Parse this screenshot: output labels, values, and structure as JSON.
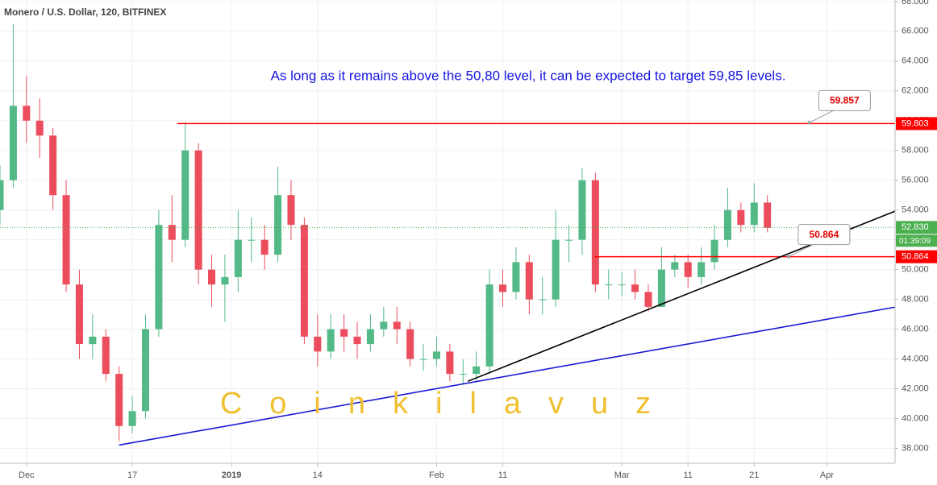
{
  "chart_data": {
    "type": "candlestick",
    "title": "Monero / U.S. Dollar, 120, BITFINEX",
    "annotation": "As long as it remains above the 50,80 level, it can be expected to target 59,85 levels.",
    "watermark": "Coinkilavuz",
    "x": [
      -4,
      -2,
      0,
      2,
      4,
      6,
      8,
      10,
      12,
      14,
      16,
      18,
      20,
      22,
      24,
      26,
      28,
      30,
      32,
      34,
      36,
      38,
      40,
      42,
      44,
      46,
      48,
      50,
      52,
      54,
      56,
      58,
      60,
      62,
      64,
      66,
      68,
      70,
      72,
      74,
      76,
      78,
      80,
      82,
      84,
      86,
      88,
      90,
      92,
      94,
      96,
      98,
      100,
      102,
      104,
      106,
      108,
      110,
      112
    ],
    "open": [
      54,
      56,
      61,
      60,
      59,
      55,
      49,
      45,
      45.5,
      43,
      39.5,
      40.5,
      46,
      53,
      52,
      58,
      50,
      49,
      49.5,
      52,
      52,
      51,
      55,
      53,
      45.5,
      44.5,
      46,
      45.5,
      45,
      46,
      46.5,
      46,
      44,
      44,
      44.5,
      43,
      43,
      43.5,
      49,
      48.5,
      50.5,
      48,
      48,
      52,
      52,
      56,
      49,
      49,
      49,
      48.5,
      47.5,
      50,
      50.5,
      49.5,
      50.5,
      52,
      54,
      53,
      54.5
    ],
    "high": [
      57,
      66.5,
      63,
      61.5,
      59.5,
      56,
      50,
      47,
      46,
      43.5,
      41.5,
      47,
      54,
      55,
      59.9,
      58.5,
      51,
      51,
      54,
      53.5,
      53,
      56.9,
      56,
      53.5,
      47,
      47,
      47,
      46.5,
      47,
      47.5,
      47.5,
      46.5,
      45,
      45.5,
      45,
      44,
      44.5,
      50,
      50,
      51.5,
      51,
      49.5,
      54,
      53,
      56.8,
      56.5,
      50,
      49.8,
      50,
      49,
      51.5,
      51,
      51,
      51.5,
      53,
      55.5,
      54.5,
      55.8,
      55
    ],
    "low": [
      53,
      55.5,
      58.5,
      57.5,
      54,
      48.5,
      44,
      44,
      42.5,
      38.5,
      39,
      40,
      45.5,
      50.5,
      51.5,
      49,
      47.5,
      46.5,
      48.5,
      50.5,
      50,
      50.5,
      52,
      45,
      43.5,
      44,
      44.5,
      44,
      44.5,
      45.5,
      45,
      43.5,
      43.2,
      43.5,
      42.5,
      42.3,
      42.5,
      43,
      47.5,
      48,
      47,
      47,
      47.5,
      50.5,
      51,
      48.5,
      48,
      48.2,
      48,
      47.2,
      47.5,
      49.5,
      48.8,
      49,
      50,
      51.5,
      52.5,
      52.5,
      52.5
    ],
    "close": [
      56,
      61,
      60,
      59,
      55,
      49,
      45,
      45.5,
      43,
      39.5,
      40.5,
      46,
      53,
      52,
      58,
      50,
      49,
      49.5,
      52,
      52,
      51,
      55,
      53,
      45.5,
      44.5,
      46,
      45.5,
      45,
      46,
      46.5,
      46,
      44,
      44,
      44.5,
      43,
      43,
      43.5,
      49,
      48.5,
      50.5,
      48,
      48,
      52,
      52,
      56,
      49,
      49,
      49,
      48.5,
      47.5,
      50,
      50.5,
      49.5,
      50.5,
      52,
      54,
      53,
      54.5,
      52.8
    ],
    "up_color": "#53b987",
    "down_color": "#eb4d5c",
    "xlim": [
      -4,
      131.3
    ],
    "ylim": [
      37,
      68.1
    ],
    "grid": true,
    "xticks": [
      {
        "value": 0,
        "label": "Dec"
      },
      {
        "value": 16,
        "label": "17"
      },
      {
        "value": 31,
        "label": "2019"
      },
      {
        "value": 44,
        "label": "14"
      },
      {
        "value": 62,
        "label": "Feb"
      },
      {
        "value": 72,
        "label": "11"
      },
      {
        "value": 90,
        "label": "Mar"
      },
      {
        "value": 100,
        "label": "11"
      },
      {
        "value": 110,
        "label": "21"
      },
      {
        "value": 121,
        "label": "Apr"
      }
    ],
    "yticks": [
      {
        "value": 38,
        "label": "38.000"
      },
      {
        "value": 40,
        "label": "40.000"
      },
      {
        "value": 42,
        "label": "42.000"
      },
      {
        "value": 44,
        "label": "44.000"
      },
      {
        "value": 46,
        "label": "46.000"
      },
      {
        "value": 48,
        "label": "48.000"
      },
      {
        "value": 50,
        "label": "50.000"
      },
      {
        "value": 52,
        "label": "52.000"
      },
      {
        "value": 54,
        "label": "54.000"
      },
      {
        "value": 56,
        "label": "56.000"
      },
      {
        "value": 58,
        "label": "58.000"
      },
      {
        "value": 60,
        "label": "60.000"
      },
      {
        "value": 62,
        "label": "62.000"
      },
      {
        "value": 64,
        "label": "64.000"
      },
      {
        "value": 66,
        "label": "66.000"
      },
      {
        "value": 68,
        "label": "68.000"
      }
    ],
    "levels": [
      {
        "value": 59.803,
        "label": "59.803",
        "color": "#ff0000",
        "start": 22.8
      },
      {
        "value": 50.864,
        "label": "50.864",
        "color": "#ff0000",
        "start": 85.9
      }
    ],
    "current_price": {
      "value": 52.83,
      "label": "52.830",
      "color": "#4caf50",
      "countdown": "01:39:09"
    },
    "trendlines": [
      {
        "x": [
          66.7,
          131.3
        ],
        "y": [
          42.5,
          53.92
        ],
        "color": "#000000"
      },
      {
        "x": [
          14.0,
          131.3
        ],
        "y": [
          38.22,
          47.48
        ],
        "color": "#1a1ad6"
      }
    ],
    "callouts": [
      {
        "label": "59.857",
        "value": 59.857,
        "x": 118.3
      },
      {
        "label": "50.864",
        "value": 50.864,
        "x": 115.2
      }
    ]
  }
}
